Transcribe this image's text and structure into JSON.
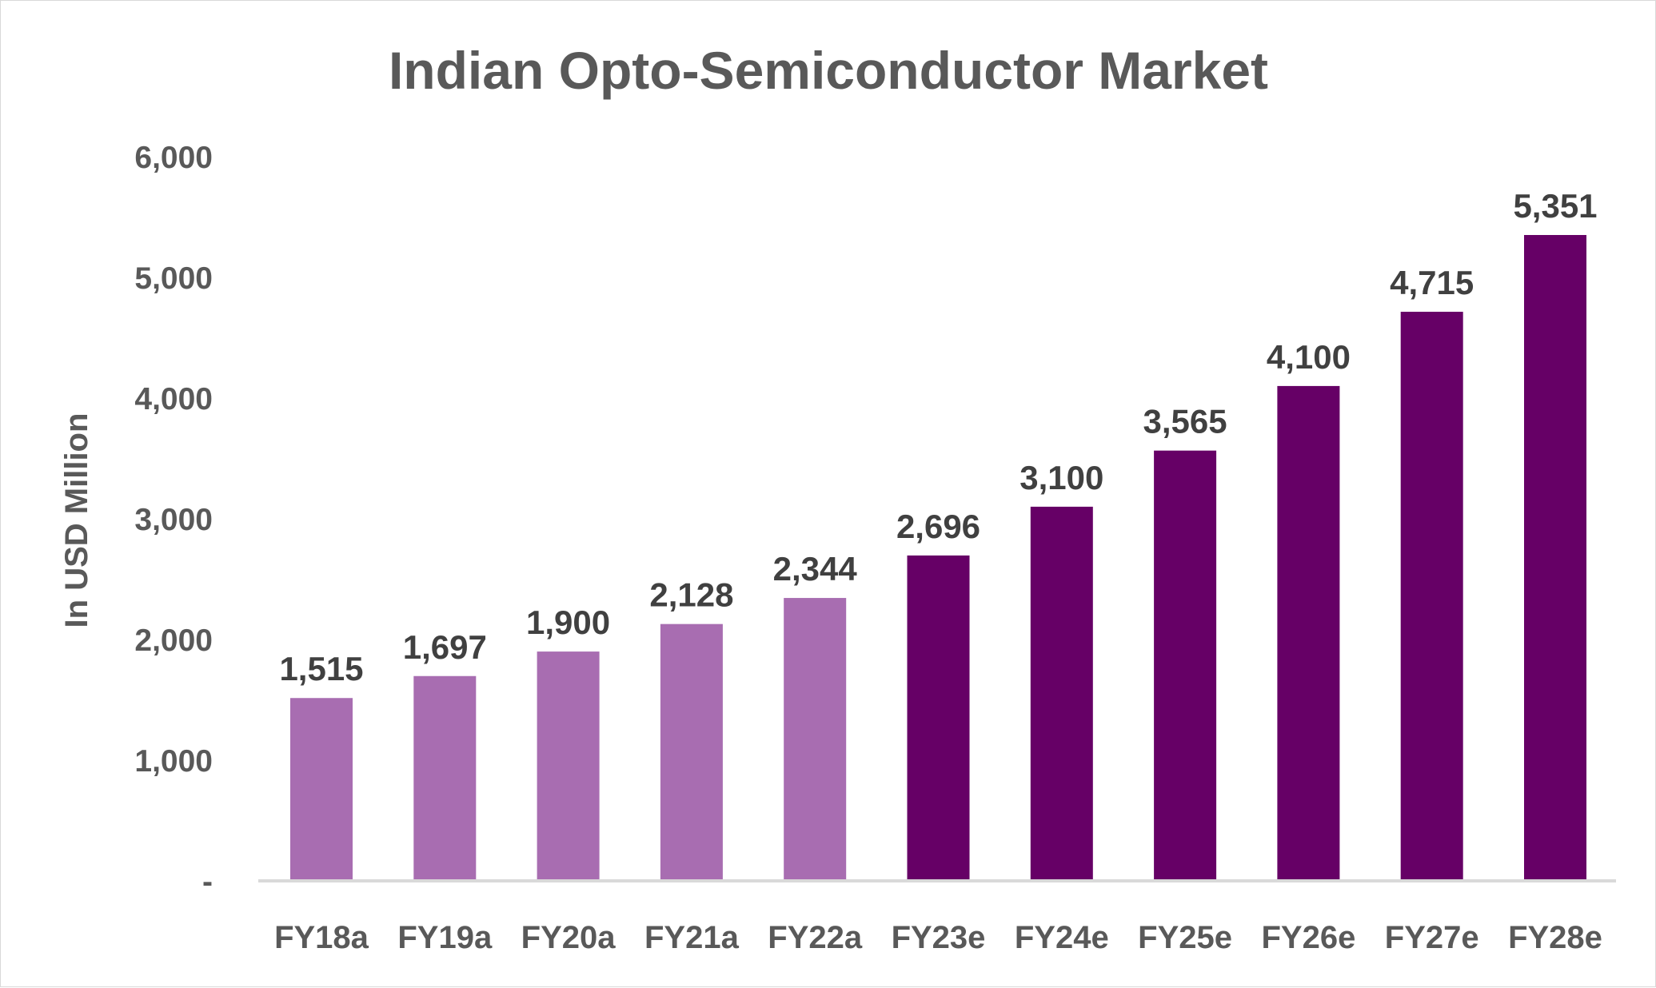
{
  "chart_data": {
    "type": "bar",
    "title": "Indian Opto-Semiconductor Market",
    "ylabel": "In USD Million",
    "xlabel": "",
    "ylim": [
      0,
      6000
    ],
    "y_ticks": [
      {
        "value": 0,
        "label": "-"
      },
      {
        "value": 1000,
        "label": "1,000"
      },
      {
        "value": 2000,
        "label": "2,000"
      },
      {
        "value": 3000,
        "label": "3,000"
      },
      {
        "value": 4000,
        "label": "4,000"
      },
      {
        "value": 5000,
        "label": "5,000"
      },
      {
        "value": 6000,
        "label": "6,000"
      }
    ],
    "categories": [
      "FY18a",
      "FY19a",
      "FY20a",
      "FY21a",
      "FY22a",
      "FY23e",
      "FY24e",
      "FY25e",
      "FY26e",
      "FY27e",
      "FY28e"
    ],
    "values": [
      1515,
      1697,
      1900,
      2128,
      2344,
      2696,
      3100,
      3565,
      4100,
      4715,
      5351
    ],
    "value_labels": [
      "1,515",
      "1,697",
      "1,900",
      "2,128",
      "2,344",
      "2,696",
      "3,100",
      "3,565",
      "4,100",
      "4,715",
      "5,351"
    ],
    "bar_colors": [
      "#a86db1",
      "#a86db1",
      "#a86db1",
      "#a86db1",
      "#a86db1",
      "#660066",
      "#660066",
      "#660066",
      "#660066",
      "#660066",
      "#660066"
    ],
    "grid": false,
    "legend": "none"
  }
}
